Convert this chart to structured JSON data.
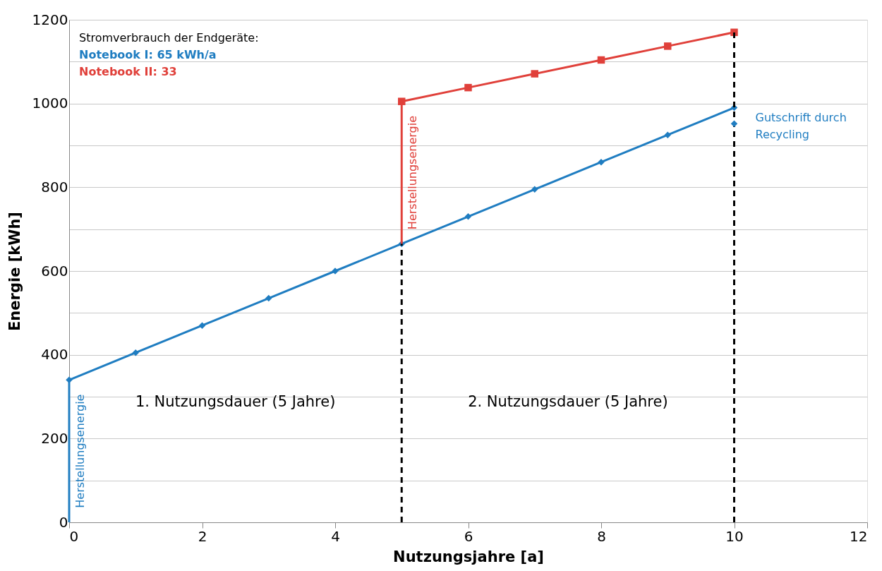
{
  "chart_data": {
    "type": "line",
    "xlabel": "Nutzungsjahre [a]",
    "ylabel": "Energie [kWh]",
    "legend_title": "Stromverbrauch der Endgeräte:",
    "legend": "top left",
    "xlim": [
      0,
      12
    ],
    "xticks": [
      0,
      2,
      4,
      6,
      8,
      10,
      12
    ],
    "ylim": [
      0,
      1200
    ],
    "yticks": [
      0,
      {
        "value": 100,
        "label": null
      },
      200,
      {
        "value": 300,
        "label": null
      },
      400,
      {
        "value": 500,
        "label": null
      },
      600,
      {
        "value": 700,
        "label": null
      },
      800,
      {
        "value": 900,
        "label": null
      },
      1000,
      {
        "value": 1100,
        "label": null
      },
      1200
    ],
    "grid": "y",
    "series": [
      {
        "name": "Notebook I: 65 kWh/a",
        "color": "#1f7dc1",
        "marker": "diamond",
        "x": [
          0,
          1,
          2,
          3,
          4,
          5,
          6,
          7,
          8,
          9,
          10
        ],
        "values": [
          340,
          405,
          470,
          535,
          600,
          665,
          730,
          795,
          860,
          925,
          990
        ]
      },
      {
        "name": "Notebook II: 33",
        "color": "#e0403a",
        "marker": "square",
        "x": [
          5,
          6,
          7,
          8,
          9,
          10
        ],
        "values": [
          1005,
          1038,
          1071,
          1104,
          1137,
          1170
        ]
      },
      {
        "type": "line",
        "color": "#1f7dc1",
        "marker": "none",
        "x": [
          0,
          0
        ],
        "values": [
          0,
          340
        ]
      },
      {
        "type": "line",
        "color": "#e0403a",
        "marker": "none",
        "x": [
          5,
          5
        ],
        "values": [
          665,
          1005
        ]
      },
      {
        "type": "line",
        "color": "#000000",
        "marker": "none",
        "line_style": "dashed",
        "x": [
          5,
          5
        ],
        "values": [
          0,
          665
        ]
      },
      {
        "type": "line",
        "color": "#000000",
        "marker": "none",
        "line_style": "dashed",
        "x": [
          10,
          10
        ],
        "values": [
          0,
          1170
        ]
      },
      {
        "type": "scatter",
        "color": "#1f7dc1",
        "marker": "diamond",
        "x": [
          10
        ],
        "values": [
          952
        ]
      }
    ],
    "annotations": [
      {
        "text": "Herstellungsenergie",
        "x": 0,
        "y": 170
      },
      {
        "text": "Herstellungsenergie",
        "x": 5,
        "y": 835
      },
      "1. Nutzungsdauer (5 Jahre)",
      "2. Nutzungsdauer (5 Jahre)",
      {
        "text": "Gutschrift durch Recycling",
        "x": 10,
        "y": 952
      }
    ]
  }
}
